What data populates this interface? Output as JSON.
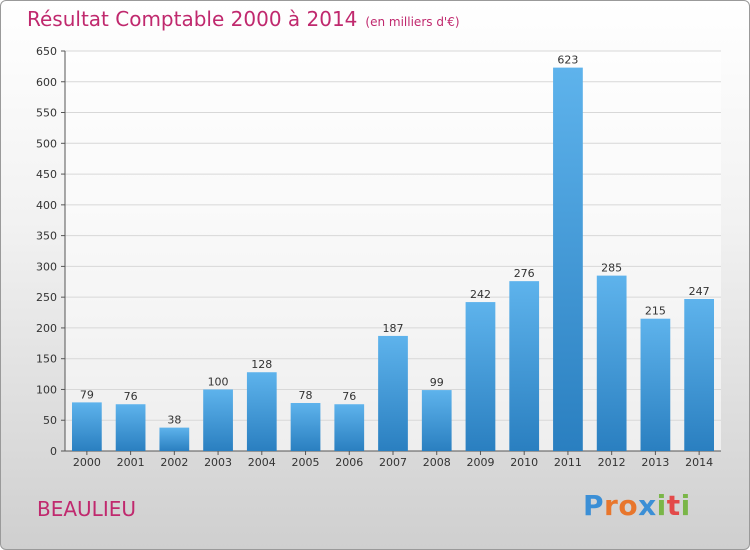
{
  "title": "Résultat Comptable 2000 à 2014",
  "subtitle": "(en milliers d'€)",
  "commune": "BEAULIEU",
  "logo": "Proxiti",
  "colors": {
    "title": "#c0296e",
    "bar_light": "#5eb3ec",
    "bar_dark": "#2a7fc0",
    "grid": "#d8d8d8"
  },
  "chart_data": {
    "type": "bar",
    "categories": [
      "2000",
      "2001",
      "2002",
      "2003",
      "2004",
      "2005",
      "2006",
      "2007",
      "2008",
      "2009",
      "2010",
      "2011",
      "2012",
      "2013",
      "2014"
    ],
    "values": [
      79,
      76,
      38,
      100,
      128,
      78,
      76,
      187,
      99,
      242,
      276,
      623,
      285,
      215,
      247
    ],
    "ylim": [
      0,
      650
    ],
    "yticks": [
      0,
      50,
      100,
      150,
      200,
      250,
      300,
      350,
      400,
      450,
      500,
      550,
      600,
      650
    ],
    "grid": true,
    "data_labels": true
  }
}
